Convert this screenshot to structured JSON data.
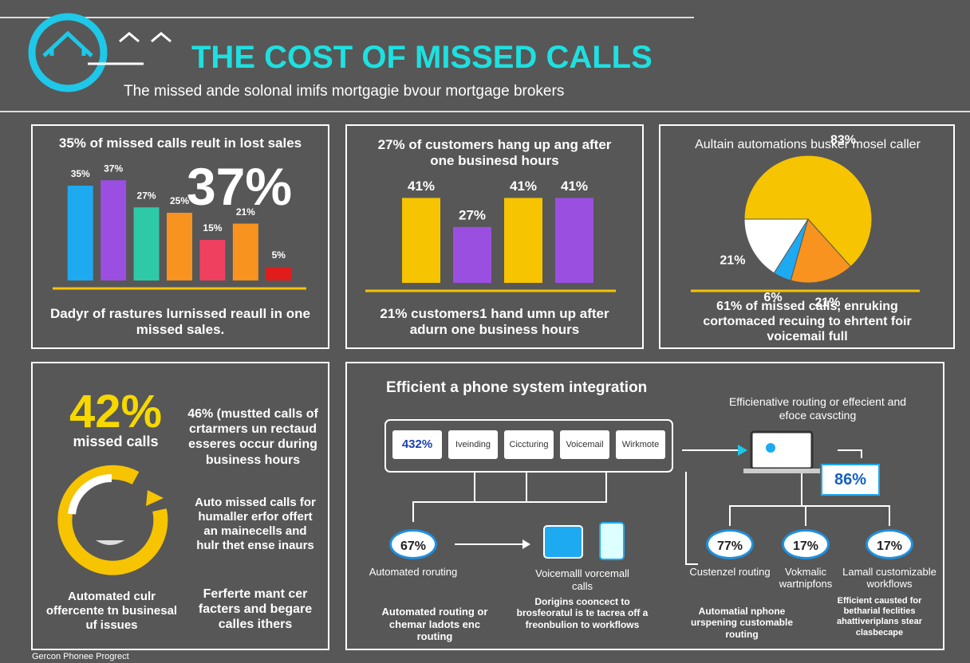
{
  "header": {
    "title": "THE COST OF MISSED CALLS",
    "subtitle": "The missed ande solonal imifs mortgagie bvour mortgage brokers"
  },
  "chart_data": [
    {
      "type": "bar",
      "title": "35% of missed calls reult in lost sales",
      "big_stat": "37%",
      "values": [
        35,
        37,
        27,
        25,
        15,
        21,
        5
      ],
      "value_labels": [
        "35%",
        "37%",
        "27%",
        "25%",
        "15%",
        "21%",
        "5%"
      ],
      "colors": [
        "#1eaaf1",
        "#9b4fe0",
        "#2ec9a6",
        "#f7931e",
        "#ef4060",
        "#f7931e",
        "#e21b1b"
      ],
      "note": "Dadyr of rastures lurnissed reaull in one missed sales."
    },
    {
      "type": "bar",
      "title": "27% of customers hang up ang after one businesd hours",
      "values": [
        41,
        27,
        41,
        41
      ],
      "value_labels": [
        "41%",
        "27%",
        "41%",
        "41%"
      ],
      "colors": [
        "#f6c400",
        "#9b4fe0",
        "#f6c400",
        "#9b4fe0"
      ],
      "note": "21% customers1 hand umn up after adurn one business hours"
    },
    {
      "type": "pie",
      "title": "Aultain automations busker mosel caller",
      "values": [
        83,
        21,
        6,
        21
      ],
      "value_labels": [
        "83%",
        "21%",
        "6%",
        "21%"
      ],
      "colors": [
        "#f6c400",
        "#f7931e",
        "#1eaaf1",
        "#ffffff"
      ],
      "note": "61% of missed calls, enruking cortomaced recuing to ehrtent foir voicemail full"
    }
  ],
  "panel4": {
    "stat": "42%",
    "stat_label": "missed calls",
    "text1": "46% (mustted calls of crtarmers un rectaud esseres occur during business hours",
    "text2": "Auto missed calls for humaller erfor offert an mainecells and hulr thet ense inaurs",
    "caption1": "Automated culr offercente tn businesal uf issues",
    "caption2": "Ferferte mant cer facters and begare calles ithers"
  },
  "panel5": {
    "title": "Efficient a phone system integration",
    "tabs": [
      "432%",
      "Iveinding",
      "Ciccturing",
      "Voicemail",
      "Wirkmote"
    ],
    "routing_title": "Efficienative routing or effecient and efoce cavscting",
    "laptop_stat": "86%",
    "nodes": [
      {
        "value": "67%",
        "label": "Automated roruting"
      },
      {
        "value": "77%",
        "label": "Custenzel routing"
      },
      {
        "value": "17%",
        "label": "Vokmalic wartnipfons"
      },
      {
        "value": "17%",
        "label": "Lamall customizable workflows"
      }
    ],
    "voicemail_label": "Voicemalll vorcemall calls",
    "captions": [
      "Automated routing or chemar ladots enc routing",
      "Dorigins cooncect to brosfeoratul is te tacrea off a freonbulion to workflows",
      "Automatial nphone urspening customable routing",
      "Efficient causted for betharial feclities ahattiveriplans stear clasbecape"
    ]
  },
  "footer": "Gercon Phonee Progrect"
}
